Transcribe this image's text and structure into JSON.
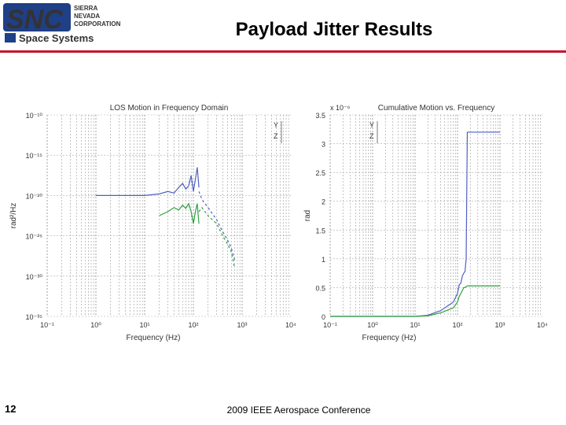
{
  "header": {
    "logo_text_sierra": "SIERRA",
    "logo_text_nevada": "NEVADA",
    "logo_text_corp": "CORPORATION",
    "logo_text_snc": "SNC",
    "logo_text_space": "Space Systems",
    "title": "Payload Jitter Results",
    "accent_color": "#c8102e",
    "logo_color": "#1f3f87"
  },
  "footer": {
    "slide_number": "12",
    "conference": "2009 IEEE Aerospace Conference"
  },
  "chart_data": [
    {
      "type": "line",
      "title": "LOS Motion in Frequency Domain",
      "xlabel": "Frequency (Hz)",
      "ylabel": "rad²/Hz",
      "x_scale": "log",
      "y_scale": "log",
      "x_ticks": [
        "10⁻¹",
        "10⁰",
        "10¹",
        "10²",
        "10³",
        "10⁴"
      ],
      "y_ticks": [
        "10⁻¹⁰",
        "10⁻¹⁵",
        "10⁻²⁰",
        "10⁻²⁵",
        "10⁻³⁰",
        "10⁻³⁵"
      ],
      "xlim": [
        0.1,
        10000
      ],
      "ylim": [
        -35,
        -10
      ],
      "legend": [
        "Y",
        "Z"
      ],
      "legend_position": "top-right",
      "series": [
        {
          "name": "Y",
          "color": "#5060c0",
          "style": "solid",
          "x": [
            1,
            2,
            5,
            10,
            20,
            30,
            40,
            50,
            60,
            70,
            80,
            90,
            100,
            110,
            120,
            130
          ],
          "y": [
            -20,
            -20,
            -20,
            -20,
            -19.8,
            -19.5,
            -19.7,
            -19,
            -18.5,
            -19.2,
            -18.8,
            -17.5,
            -19.5,
            -18,
            -16.5,
            -19
          ]
        },
        {
          "name": "Z",
          "color": "#30a040",
          "style": "solid",
          "x": [
            20,
            30,
            40,
            50,
            60,
            70,
            80,
            90,
            100,
            110,
            120,
            130
          ],
          "y": [
            -22.5,
            -22,
            -21.5,
            -21.8,
            -21.2,
            -21.6,
            -21,
            -22,
            -23.5,
            -22,
            -21,
            -23.5
          ]
        },
        {
          "name": "Y",
          "color": "#5060c0",
          "style": "dashed",
          "x": [
            130,
            150,
            200,
            300,
            400,
            500,
            600,
            700
          ],
          "y": [
            -19.5,
            -20.5,
            -21.5,
            -23,
            -24.5,
            -25.5,
            -26.5,
            -28
          ]
        },
        {
          "name": "Z",
          "color": "#30a040",
          "style": "dashed",
          "x": [
            130,
            150,
            200,
            300,
            400,
            500,
            600,
            700
          ],
          "y": [
            -22,
            -21.5,
            -22.5,
            -23.5,
            -25,
            -26,
            -27,
            -29
          ]
        }
      ]
    },
    {
      "type": "line",
      "title": "Cumulative Motion vs. Frequency",
      "xlabel": "Frequency (Hz)",
      "ylabel": "rad",
      "x_scale": "log",
      "y_multiplier": "x 10⁻⁶",
      "x_ticks": [
        "10⁻¹",
        "10⁰",
        "10¹",
        "10²",
        "10³",
        "10⁴"
      ],
      "y_ticks": [
        "0",
        "0.5",
        "1",
        "1.5",
        "2",
        "2.5",
        "3",
        "3.5"
      ],
      "xlim": [
        0.1,
        10000
      ],
      "ylim": [
        0,
        3.5
      ],
      "legend": [
        "Y",
        "Z"
      ],
      "legend_position": "top-right",
      "series": [
        {
          "name": "Y",
          "color": "#5060c0",
          "x": [
            0.1,
            10,
            20,
            40,
            80,
            100,
            110,
            120,
            130,
            140,
            150,
            160,
            170,
            300,
            1000
          ],
          "y": [
            0,
            0,
            0.02,
            0.1,
            0.25,
            0.4,
            0.55,
            0.58,
            0.7,
            0.75,
            0.78,
            1.0,
            3.2,
            3.2,
            3.2
          ]
        },
        {
          "name": "Z",
          "color": "#30a040",
          "x": [
            0.1,
            10,
            20,
            40,
            80,
            100,
            110,
            120,
            130,
            140,
            150,
            160,
            170,
            300,
            1000
          ],
          "y": [
            0,
            0,
            0.01,
            0.06,
            0.15,
            0.25,
            0.35,
            0.4,
            0.45,
            0.5,
            0.5,
            0.52,
            0.53,
            0.53,
            0.53
          ]
        }
      ]
    }
  ]
}
